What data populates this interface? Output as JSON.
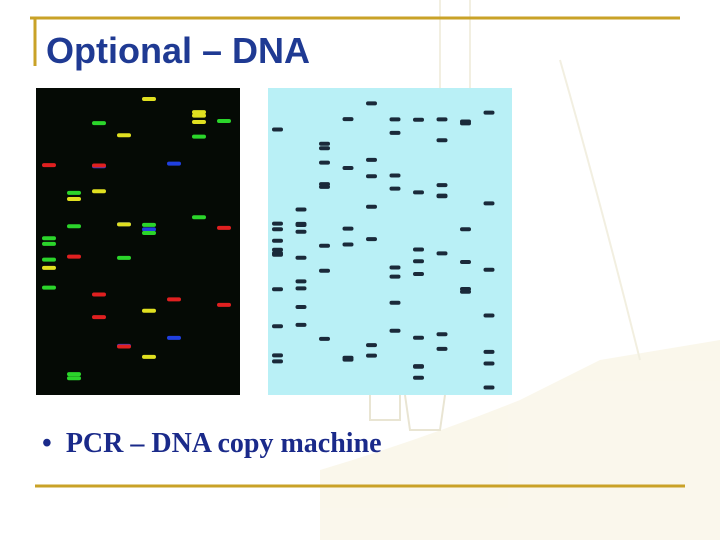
{
  "slide": {
    "title": "Optional – DNA",
    "bullets": [
      "PCR – DNA copy machine"
    ]
  }
}
